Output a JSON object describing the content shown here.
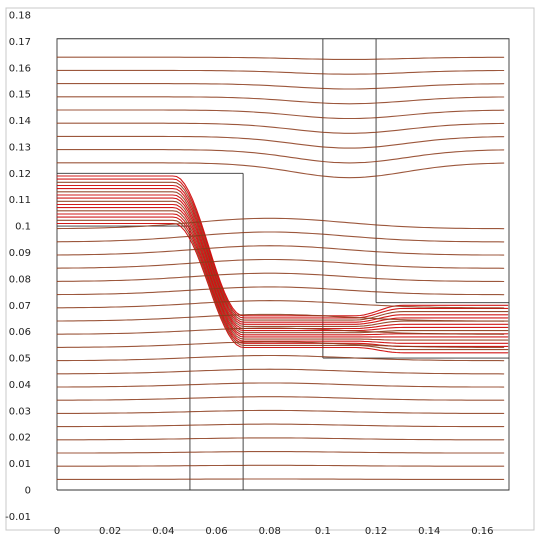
{
  "chart_data": {
    "type": "line",
    "title": "",
    "xlabel": "",
    "ylabel": "",
    "xlim": [
      -0.004,
      0.174
    ],
    "ylim": [
      -0.012,
      0.182
    ],
    "x_ticks": [
      "0",
      "0.02",
      "0.04",
      "0.06",
      "0.08",
      "0.1",
      "0.12",
      "0.14",
      "0.16"
    ],
    "x_tick_values": [
      0,
      0.02,
      0.04,
      0.06,
      0.08,
      0.1,
      0.12,
      0.14,
      0.16
    ],
    "y_ticks": [
      "-0.01",
      "0",
      "0.01",
      "0.02",
      "0.03",
      "0.04",
      "0.05",
      "0.06",
      "0.07",
      "0.08",
      "0.09",
      "0.1",
      "0.11",
      "0.12",
      "0.13",
      "0.14",
      "0.15",
      "0.16",
      "0.17",
      "0.18"
    ],
    "y_tick_values": [
      -0.01,
      0,
      0.01,
      0.02,
      0.03,
      0.04,
      0.05,
      0.06,
      0.07,
      0.08,
      0.09,
      0.1,
      0.11,
      0.12,
      0.13,
      0.14,
      0.15,
      0.16,
      0.17,
      0.18
    ],
    "grid": false,
    "geometry_lines": [
      {
        "x": [
          0,
          0.17,
          0.17,
          0,
          0
        ],
        "y": [
          0,
          0,
          0.171,
          0.171,
          0
        ]
      },
      {
        "x": [
          0,
          0.05
        ],
        "y": [
          0.1,
          0.1
        ]
      },
      {
        "x": [
          0,
          0.07
        ],
        "y": [
          0.12,
          0.12
        ]
      },
      {
        "x": [
          0.05,
          0.05
        ],
        "y": [
          0,
          0.1
        ]
      },
      {
        "x": [
          0.07,
          0.07
        ],
        "y": [
          0,
          0.12
        ]
      },
      {
        "x": [
          0.1,
          0.1
        ],
        "y": [
          0.05,
          0.171
        ]
      },
      {
        "x": [
          0.12,
          0.12
        ],
        "y": [
          0.071,
          0.171
        ]
      },
      {
        "x": [
          0.1,
          0.17
        ],
        "y": [
          0.05,
          0.05
        ]
      },
      {
        "x": [
          0.12,
          0.17
        ],
        "y": [
          0.071,
          0.071
        ]
      }
    ],
    "streamlines": {
      "color": "#cc0000",
      "secondary_color": "#8b3a1a",
      "dense_inlet": {
        "y_range": [
          0.101,
          0.119
        ],
        "count": 16
      },
      "dense_outlet": {
        "y_range": [
          0.052,
          0.07
        ],
        "count": 16
      },
      "regular": {
        "y_range": [
          0.004,
          0.168
        ],
        "spacing": 0.005
      }
    }
  }
}
